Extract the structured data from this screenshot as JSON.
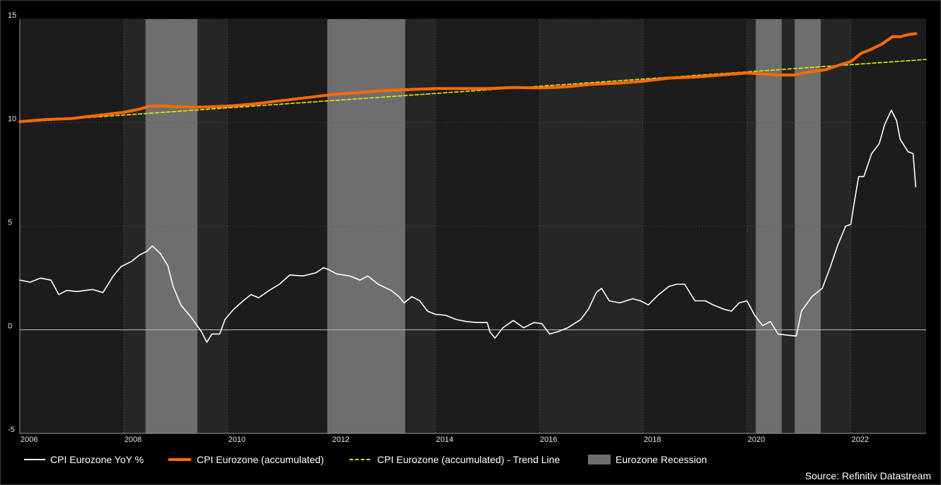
{
  "chart_data": {
    "type": "line",
    "title": "",
    "xlabel": "",
    "ylabel": "",
    "xlim": [
      2006.0,
      2023.45
    ],
    "ylim": [
      -5,
      15
    ],
    "grid": true,
    "legend_position": "bottom",
    "x_ticks": [
      2006,
      2008,
      2010,
      2012,
      2014,
      2016,
      2018,
      2020,
      2022
    ],
    "y_ticks": [
      -5,
      0,
      5,
      10,
      15
    ],
    "recessions": [
      [
        2008.42,
        2009.42
      ],
      [
        2011.92,
        2013.42
      ],
      [
        2020.17,
        2020.67
      ],
      [
        2020.92,
        2021.42
      ]
    ],
    "series": [
      {
        "name": "CPI Eurozone YoY %",
        "style": "solid-thin",
        "color": "#ffffff",
        "points": [
          [
            2006.0,
            2.4
          ],
          [
            2006.2,
            2.3
          ],
          [
            2006.4,
            2.5
          ],
          [
            2006.6,
            2.4
          ],
          [
            2006.75,
            1.7
          ],
          [
            2006.9,
            1.9
          ],
          [
            2007.1,
            1.85
          ],
          [
            2007.4,
            1.95
          ],
          [
            2007.6,
            1.8
          ],
          [
            2007.8,
            2.6
          ],
          [
            2007.95,
            3.05
          ],
          [
            2008.15,
            3.3
          ],
          [
            2008.3,
            3.6
          ],
          [
            2008.45,
            3.8
          ],
          [
            2008.55,
            4.05
          ],
          [
            2008.7,
            3.7
          ],
          [
            2008.85,
            3.1
          ],
          [
            2008.95,
            2.1
          ],
          [
            2009.1,
            1.2
          ],
          [
            2009.3,
            0.6
          ],
          [
            2009.5,
            -0.1
          ],
          [
            2009.6,
            -0.6
          ],
          [
            2009.7,
            -0.2
          ],
          [
            2009.85,
            -0.2
          ],
          [
            2009.95,
            0.5
          ],
          [
            2010.1,
            0.95
          ],
          [
            2010.3,
            1.4
          ],
          [
            2010.45,
            1.7
          ],
          [
            2010.6,
            1.55
          ],
          [
            2010.8,
            1.9
          ],
          [
            2011.0,
            2.2
          ],
          [
            2011.2,
            2.65
          ],
          [
            2011.45,
            2.6
          ],
          [
            2011.7,
            2.75
          ],
          [
            2011.85,
            3.0
          ],
          [
            2011.95,
            2.9
          ],
          [
            2012.1,
            2.7
          ],
          [
            2012.35,
            2.6
          ],
          [
            2012.55,
            2.4
          ],
          [
            2012.7,
            2.6
          ],
          [
            2012.9,
            2.2
          ],
          [
            2013.15,
            1.9
          ],
          [
            2013.3,
            1.6
          ],
          [
            2013.4,
            1.3
          ],
          [
            2013.55,
            1.6
          ],
          [
            2013.7,
            1.4
          ],
          [
            2013.85,
            0.9
          ],
          [
            2014.0,
            0.75
          ],
          [
            2014.2,
            0.7
          ],
          [
            2014.4,
            0.5
          ],
          [
            2014.6,
            0.4
          ],
          [
            2014.8,
            0.35
          ],
          [
            2015.0,
            0.35
          ],
          [
            2015.05,
            -0.1
          ],
          [
            2015.15,
            -0.4
          ],
          [
            2015.3,
            0.1
          ],
          [
            2015.5,
            0.45
          ],
          [
            2015.7,
            0.1
          ],
          [
            2015.9,
            0.35
          ],
          [
            2016.05,
            0.3
          ],
          [
            2016.2,
            -0.2
          ],
          [
            2016.35,
            -0.1
          ],
          [
            2016.55,
            0.1
          ],
          [
            2016.8,
            0.5
          ],
          [
            2016.95,
            1.0
          ],
          [
            2017.1,
            1.8
          ],
          [
            2017.2,
            2.0
          ],
          [
            2017.35,
            1.4
          ],
          [
            2017.55,
            1.3
          ],
          [
            2017.8,
            1.5
          ],
          [
            2017.95,
            1.4
          ],
          [
            2018.1,
            1.2
          ],
          [
            2018.3,
            1.7
          ],
          [
            2018.5,
            2.1
          ],
          [
            2018.65,
            2.2
          ],
          [
            2018.8,
            2.2
          ],
          [
            2019.0,
            1.4
          ],
          [
            2019.2,
            1.4
          ],
          [
            2019.35,
            1.2
          ],
          [
            2019.55,
            1.0
          ],
          [
            2019.7,
            0.9
          ],
          [
            2019.85,
            1.3
          ],
          [
            2020.0,
            1.4
          ],
          [
            2020.15,
            0.7
          ],
          [
            2020.3,
            0.2
          ],
          [
            2020.45,
            0.4
          ],
          [
            2020.6,
            -0.2
          ],
          [
            2020.75,
            -0.25
          ],
          [
            2020.95,
            -0.3
          ],
          [
            2021.05,
            0.9
          ],
          [
            2021.25,
            1.6
          ],
          [
            2021.45,
            2.0
          ],
          [
            2021.6,
            3.0
          ],
          [
            2021.75,
            4.1
          ],
          [
            2021.9,
            5.0
          ],
          [
            2022.0,
            5.1
          ],
          [
            2022.05,
            5.9
          ],
          [
            2022.15,
            7.4
          ],
          [
            2022.25,
            7.4
          ],
          [
            2022.4,
            8.5
          ],
          [
            2022.55,
            9.0
          ],
          [
            2022.65,
            9.9
          ],
          [
            2022.78,
            10.6
          ],
          [
            2022.88,
            10.1
          ],
          [
            2022.95,
            9.2
          ],
          [
            2023.1,
            8.6
          ],
          [
            2023.2,
            8.5
          ],
          [
            2023.25,
            6.9
          ]
        ]
      },
      {
        "name": "CPI Eurozone (accumulated)",
        "style": "solid-thick",
        "color": "#ff6a00",
        "points": [
          [
            2006.0,
            10.05
          ],
          [
            2006.5,
            10.15
          ],
          [
            2007.0,
            10.2
          ],
          [
            2007.5,
            10.35
          ],
          [
            2008.0,
            10.5
          ],
          [
            2008.3,
            10.65
          ],
          [
            2008.5,
            10.8
          ],
          [
            2008.8,
            10.8
          ],
          [
            2009.2,
            10.75
          ],
          [
            2009.5,
            10.75
          ],
          [
            2010.0,
            10.8
          ],
          [
            2010.5,
            10.9
          ],
          [
            2011.0,
            11.05
          ],
          [
            2011.5,
            11.2
          ],
          [
            2012.0,
            11.35
          ],
          [
            2012.5,
            11.45
          ],
          [
            2013.0,
            11.55
          ],
          [
            2013.5,
            11.6
          ],
          [
            2014.0,
            11.65
          ],
          [
            2014.5,
            11.65
          ],
          [
            2015.0,
            11.65
          ],
          [
            2015.5,
            11.7
          ],
          [
            2016.0,
            11.68
          ],
          [
            2016.3,
            11.7
          ],
          [
            2016.6,
            11.75
          ],
          [
            2017.0,
            11.85
          ],
          [
            2017.5,
            11.9
          ],
          [
            2018.0,
            12.0
          ],
          [
            2018.5,
            12.15
          ],
          [
            2019.0,
            12.2
          ],
          [
            2019.5,
            12.3
          ],
          [
            2020.0,
            12.4
          ],
          [
            2020.3,
            12.35
          ],
          [
            2020.6,
            12.3
          ],
          [
            2020.9,
            12.3
          ],
          [
            2021.2,
            12.45
          ],
          [
            2021.5,
            12.55
          ],
          [
            2021.8,
            12.8
          ],
          [
            2022.0,
            12.95
          ],
          [
            2022.2,
            13.35
          ],
          [
            2022.4,
            13.55
          ],
          [
            2022.6,
            13.8
          ],
          [
            2022.8,
            14.15
          ],
          [
            2022.95,
            14.15
          ],
          [
            2023.1,
            14.25
          ],
          [
            2023.25,
            14.3
          ]
        ]
      },
      {
        "name": "CPI Eurozone (accumulated) - Trend Line",
        "style": "dashed",
        "color": "#e8e80a",
        "points": [
          [
            2006.0,
            10.02
          ],
          [
            2023.45,
            13.05
          ]
        ]
      }
    ]
  },
  "legend": {
    "yoy": "CPI Eurozone YoY %",
    "accumulated": "CPI Eurozone (accumulated)",
    "trend": "CPI Eurozone (accumulated) - Trend Line",
    "recession": "Eurozone Recession"
  },
  "source": "Source: Refinitiv Datastream",
  "colors": {
    "background": "#000000",
    "plot_background": "#1c1c1c",
    "alt_band": "#262626",
    "recession": "#6e6e6e",
    "yoy": "#ffffff",
    "accumulated": "#ff6a00",
    "trend": "#e8e80a"
  }
}
